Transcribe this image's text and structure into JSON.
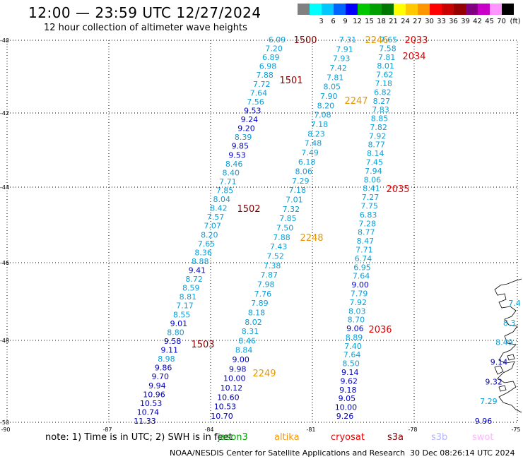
{
  "header": {
    "title": "12:00 — 23:59 UTC 12/27/2024",
    "subtitle": "12 hour collection of altimeter wave heights"
  },
  "scale": {
    "unit": "(ft)",
    "items": [
      {
        "label": "",
        "color": "#808080"
      },
      {
        "label": "3",
        "color": "#00ffff"
      },
      {
        "label": "6",
        "color": "#00c8ff"
      },
      {
        "label": "9",
        "color": "#0064ff"
      },
      {
        "label": "12",
        "color": "#0000ff"
      },
      {
        "label": "15",
        "color": "#00c800"
      },
      {
        "label": "18",
        "color": "#00a000"
      },
      {
        "label": "21",
        "color": "#007800"
      },
      {
        "label": "24",
        "color": "#ffff00"
      },
      {
        "label": "27",
        "color": "#ffc800"
      },
      {
        "label": "30",
        "color": "#ff9600"
      },
      {
        "label": "33",
        "color": "#ff0000"
      },
      {
        "label": "36",
        "color": "#c80000"
      },
      {
        "label": "39",
        "color": "#960000"
      },
      {
        "label": "42",
        "color": "#800080"
      },
      {
        "label": "45",
        "color": "#c800c8"
      },
      {
        "label": "70",
        "color": "#ff96ff"
      },
      {
        "label": "",
        "color": "#000000"
      }
    ]
  },
  "axes": {
    "lat_labels": [
      "-40",
      "-42",
      "-44",
      "-46",
      "-48",
      "-50"
    ],
    "lon_labels": [
      "-90",
      "-87",
      "-84",
      "-81",
      "-78",
      "-75"
    ]
  },
  "tracks": [
    {
      "heights": [
        "6.09",
        "7.20",
        "6.89",
        "6.98",
        "7.88",
        "7.72",
        "7.64",
        "7.56",
        "9.53",
        "9.24",
        "9.20",
        "8.39",
        "9.85",
        "9.53",
        "8.46",
        "8.40",
        "7.71",
        "7.85",
        "8.04",
        "8.42",
        "7.57",
        "7.07",
        "8.20",
        "7.65",
        "8.36",
        "8.88",
        "9.41",
        "8.72",
        "8.59",
        "8.81",
        "7.17",
        "8.55",
        "9.01",
        "8.80",
        "9.58",
        "9.11",
        "8.98",
        "9.86",
        "9.70",
        "9.94",
        "10.96",
        "10.53",
        "10.74",
        "11.33"
      ],
      "times": [
        {
          "text": "1500",
          "color": "#800000"
        },
        {
          "text": "1501",
          "color": "#800000"
        },
        {
          "text": "1502",
          "color": "#800000"
        },
        {
          "text": "1503",
          "color": "#800000"
        }
      ]
    },
    {
      "heights": [
        "7.31",
        "7.91",
        "7.93",
        "7.42",
        "7.81",
        "8.05",
        "7.90",
        "8.20",
        "7.08",
        "7.18",
        "8.23",
        "7.48",
        "7.49",
        "6.18",
        "8.06",
        "7.29",
        "7.18",
        "7.01",
        "7.32",
        "7.85",
        "7.50",
        "7.88",
        "7.43",
        "7.52",
        "7.38",
        "7.87",
        "7.98",
        "7.76",
        "7.89",
        "8.18",
        "8.02",
        "8.31",
        "8.46",
        "8.84",
        "9.00",
        "9.98",
        "10.00",
        "10.12",
        "10.60",
        "10.53",
        "10.70"
      ],
      "times": [
        {
          "text": "2246",
          "color": "#e69600"
        },
        {
          "text": "2247",
          "color": "#e69600"
        },
        {
          "text": "2248",
          "color": "#e69600"
        },
        {
          "text": "2249",
          "color": "#e69600"
        }
      ]
    },
    {
      "heights": [
        "7.65",
        "7.58",
        "7.81",
        "8.01",
        "7.62",
        "7.18",
        "6.82",
        "8.27",
        "7.83",
        "8.85",
        "7.82",
        "7.92",
        "8.77",
        "8.14",
        "7.45",
        "7.94",
        "8.06",
        "8.41",
        "7.27",
        "7.75",
        "6.83",
        "7.28",
        "8.77",
        "8.47",
        "7.71",
        "6.74",
        "6.95",
        "7.64",
        "9.00",
        "7.79",
        "7.92",
        "8.03",
        "8.70",
        "9.06",
        "8.89",
        "7.40",
        "7.64",
        "8.50",
        "9.14",
        "9.62",
        "9.18",
        "9.05",
        "10.00",
        "9.26"
      ],
      "times": [
        {
          "text": "2033",
          "color": "#e60000"
        },
        {
          "text": "2034",
          "color": "#e60000"
        },
        {
          "text": "2035",
          "color": "#e60000"
        },
        {
          "text": "2036",
          "color": "#e60000"
        }
      ]
    },
    {
      "heights": [
        "7.4",
        "8.3",
        "8.49",
        "9.14",
        "9.32",
        "7.29",
        "9.96"
      ],
      "times": []
    }
  ],
  "footer": {
    "note": "note:  1) Time is in UTC; 2) SWH is in feet",
    "satellites": [
      {
        "name": "jason3",
        "color": "#00a000"
      },
      {
        "name": "altika",
        "color": "#ff9600"
      },
      {
        "name": "cryosat",
        "color": "#e60000"
      },
      {
        "name": "s3a",
        "color": "#800000"
      },
      {
        "name": "s3b",
        "color": "#b4b4ff"
      },
      {
        "name": "swot",
        "color": "#ffb4ff"
      }
    ],
    "credit": "NOAA/NESDIS Center for Satellite Applications and Research",
    "timestamp": "30 Dec 08:26:14 UTC 2024"
  }
}
